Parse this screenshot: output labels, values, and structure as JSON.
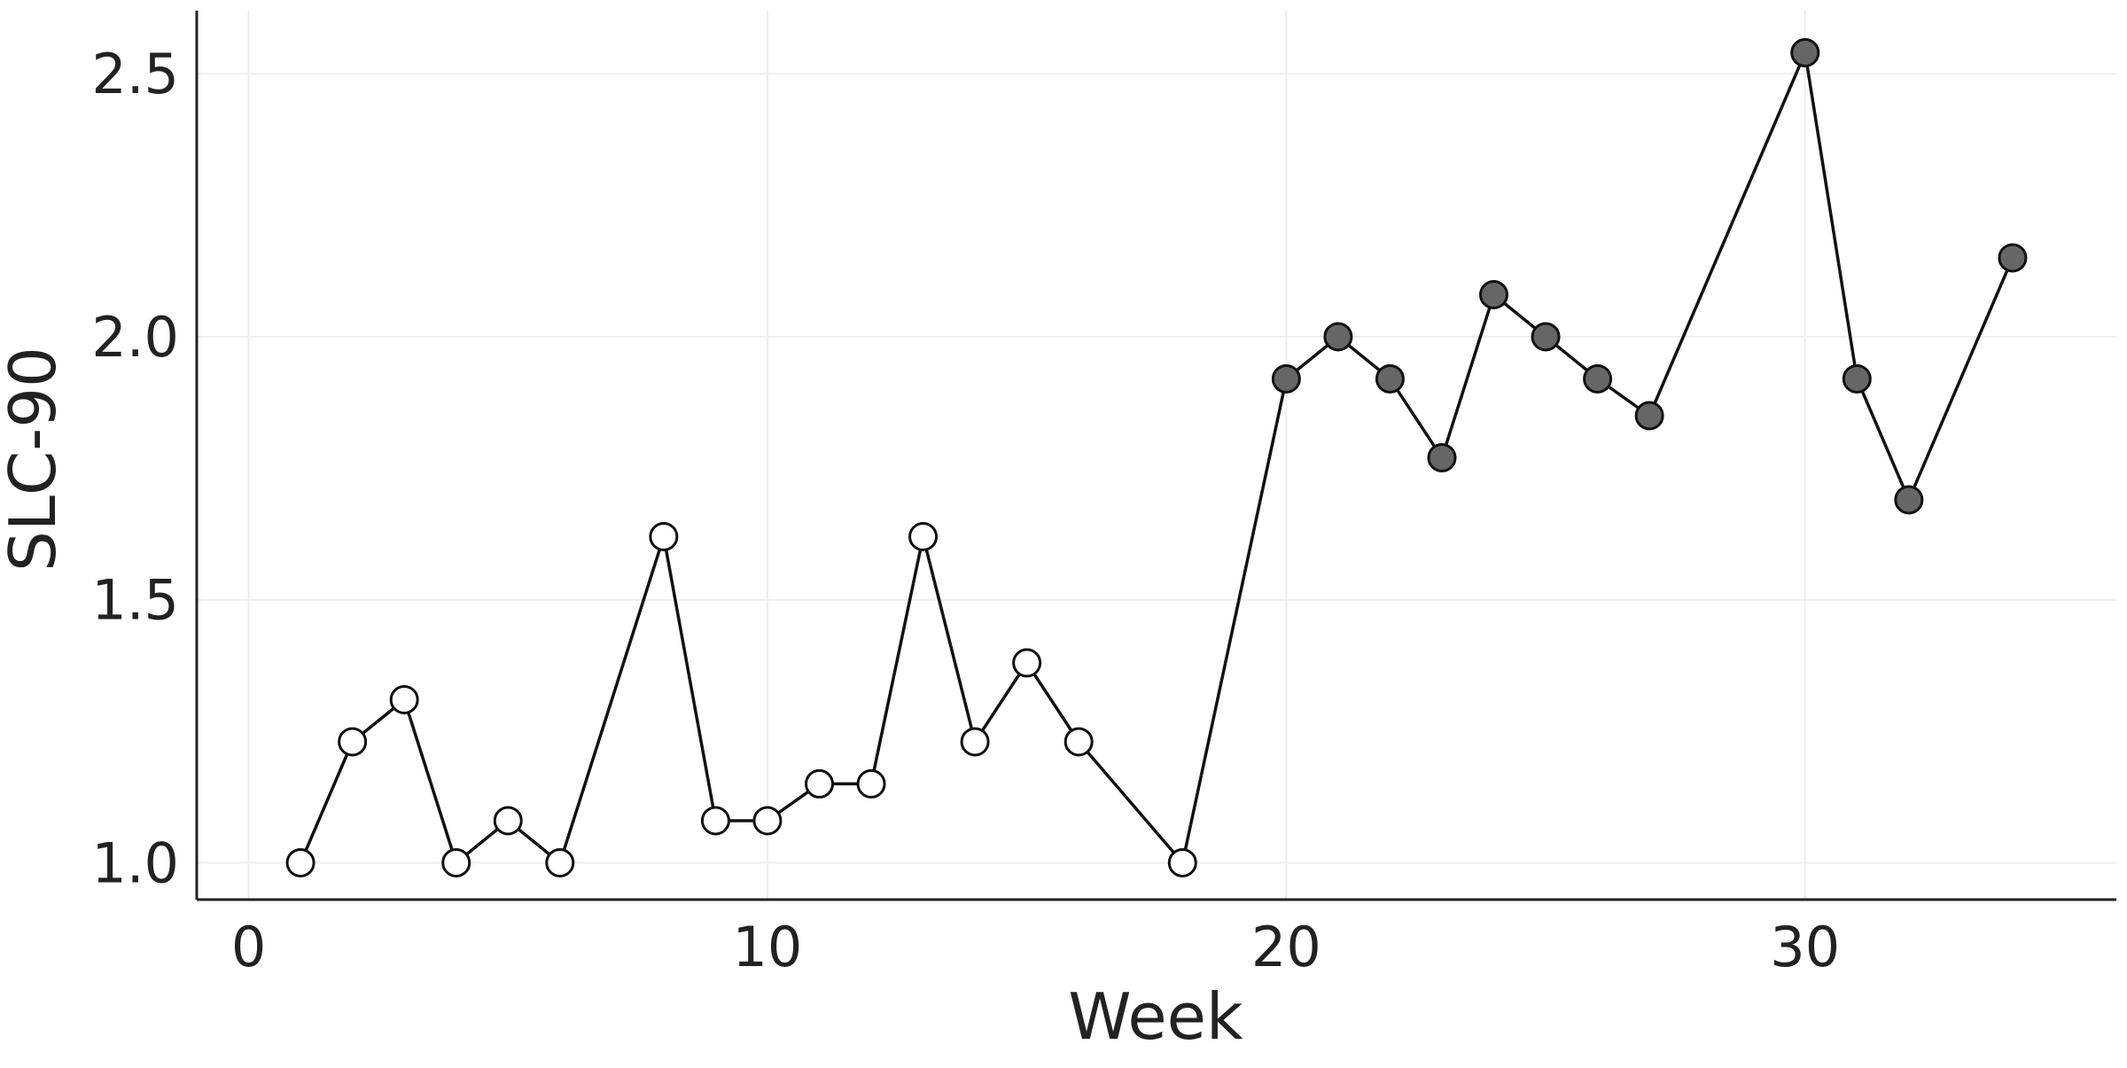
{
  "chart_data": {
    "type": "line",
    "xlabel": "Week",
    "ylabel": "SLC-90",
    "xlim": [
      -1,
      36
    ],
    "ylim": [
      0.93,
      2.62
    ],
    "xticks": [
      0,
      10,
      20,
      30
    ],
    "yticks": [
      1.0,
      1.5,
      2.0,
      2.5
    ],
    "ytick_labels": [
      "1.0",
      "1.5",
      "2.0",
      "2.5"
    ],
    "grid": true,
    "legend": "none",
    "series": [
      {
        "points": [
          {
            "x": 1,
            "y": 1.0,
            "fill": "open"
          },
          {
            "x": 2,
            "y": 1.23,
            "fill": "open"
          },
          {
            "x": 3,
            "y": 1.31,
            "fill": "open"
          },
          {
            "x": 4,
            "y": 1.0,
            "fill": "open"
          },
          {
            "x": 5,
            "y": 1.08,
            "fill": "open"
          },
          {
            "x": 6,
            "y": 1.0,
            "fill": "open"
          },
          {
            "x": 8,
            "y": 1.62,
            "fill": "open"
          },
          {
            "x": 9,
            "y": 1.08,
            "fill": "open"
          },
          {
            "x": 10,
            "y": 1.08,
            "fill": "open"
          },
          {
            "x": 11,
            "y": 1.15,
            "fill": "open"
          },
          {
            "x": 12,
            "y": 1.15,
            "fill": "open"
          },
          {
            "x": 13,
            "y": 1.62,
            "fill": "open"
          },
          {
            "x": 14,
            "y": 1.23,
            "fill": "open"
          },
          {
            "x": 15,
            "y": 1.38,
            "fill": "open"
          },
          {
            "x": 16,
            "y": 1.23,
            "fill": "open"
          },
          {
            "x": 18,
            "y": 1.0,
            "fill": "open"
          },
          {
            "x": 20,
            "y": 1.92,
            "fill": "filled"
          },
          {
            "x": 21,
            "y": 2.0,
            "fill": "filled"
          },
          {
            "x": 22,
            "y": 1.92,
            "fill": "filled"
          },
          {
            "x": 23,
            "y": 1.77,
            "fill": "filled"
          },
          {
            "x": 24,
            "y": 2.08,
            "fill": "filled"
          },
          {
            "x": 25,
            "y": 2.0,
            "fill": "filled"
          },
          {
            "x": 26,
            "y": 1.92,
            "fill": "filled"
          },
          {
            "x": 27,
            "y": 1.85,
            "fill": "filled"
          },
          {
            "x": 30,
            "y": 2.54,
            "fill": "filled"
          },
          {
            "x": 31,
            "y": 1.92,
            "fill": "filled"
          },
          {
            "x": 32,
            "y": 1.69,
            "fill": "filled"
          },
          {
            "x": 34,
            "y": 2.15,
            "fill": "filled"
          }
        ]
      }
    ],
    "colors": {
      "line": "#111111",
      "open_marker_fill": "#ffffff",
      "filled_marker_fill": "#666666",
      "marker_stroke": "#111111",
      "axis": "#222222",
      "grid": "#eeeeee",
      "text": "#222222"
    }
  }
}
